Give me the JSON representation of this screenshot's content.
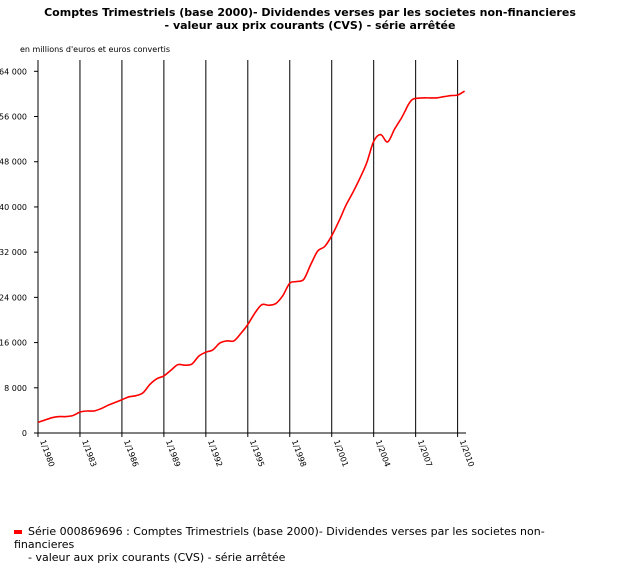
{
  "title_line1": "Comptes Trimestriels (base 2000)- Dividendes verses par les societes non-financieres",
  "title_line2": "- valeur aux prix courants (CVS) - série arrêtée",
  "unit_label": "en millions d'euros et euros convertis",
  "legend": {
    "line1": "Série 000869696 : Comptes Trimestriels (base 2000)- Dividendes verses par les societes non-financieres",
    "line2": "- valeur aux prix courants (CVS) - série arrêtée",
    "color": "#ff0000"
  },
  "chart_data": {
    "type": "line",
    "title": "Comptes Trimestriels (base 2000)- Dividendes verses par les societes non-financieres - valeur aux prix courants (CVS) - série arrêtée",
    "ylabel": "en millions d'euros et euros convertis",
    "xlim": [
      1980,
      2010.6
    ],
    "ylim": [
      0,
      66000
    ],
    "grid": "vertical",
    "x_ticks": [
      {
        "x": 1980,
        "label": "1/1980"
      },
      {
        "x": 1983,
        "label": "1/1983"
      },
      {
        "x": 1986,
        "label": "1/1986"
      },
      {
        "x": 1989,
        "label": "1/1989"
      },
      {
        "x": 1992,
        "label": "1/1992"
      },
      {
        "x": 1995,
        "label": "1/1995"
      },
      {
        "x": 1998,
        "label": "1/1998"
      },
      {
        "x": 2001,
        "label": "1/2001"
      },
      {
        "x": 2004,
        "label": "1/2004"
      },
      {
        "x": 2007,
        "label": "1/2007"
      },
      {
        "x": 2010,
        "label": "1/2010"
      }
    ],
    "y_ticks": [
      {
        "y": 0,
        "label": "0"
      },
      {
        "y": 8000,
        "label": "8 000"
      },
      {
        "y": 16000,
        "label": "16 000"
      },
      {
        "y": 24000,
        "label": "24 000"
      },
      {
        "y": 32000,
        "label": "32 000"
      },
      {
        "y": 40000,
        "label": "40 000"
      },
      {
        "y": 48000,
        "label": "48 000"
      },
      {
        "y": 56000,
        "label": "56 000"
      },
      {
        "y": 64000,
        "label": "64 000"
      }
    ],
    "series": [
      {
        "color": "#ff0000",
        "x": [
          1980.0,
          1980.5,
          1981.0,
          1981.5,
          1982.0,
          1982.5,
          1983.0,
          1983.5,
          1984.0,
          1984.5,
          1985.0,
          1985.5,
          1986.0,
          1986.5,
          1987.0,
          1987.5,
          1988.0,
          1988.5,
          1989.0,
          1989.5,
          1990.0,
          1990.5,
          1991.0,
          1991.5,
          1992.0,
          1992.5,
          1993.0,
          1993.5,
          1994.0,
          1994.5,
          1995.0,
          1995.5,
          1996.0,
          1996.5,
          1997.0,
          1997.5,
          1998.0,
          1998.5,
          1999.0,
          1999.5,
          2000.0,
          2000.5,
          2001.0,
          2001.5,
          2002.0,
          2002.5,
          2003.0,
          2003.5,
          2004.0,
          2004.5,
          2005.0,
          2005.5,
          2006.0,
          2006.25,
          2006.5,
          2006.75,
          2007.0,
          2007.5,
          2008.0,
          2008.5,
          2009.0,
          2009.5,
          2010.0,
          2010.5
        ],
        "y": [
          1900,
          2300,
          2700,
          2900,
          2900,
          3100,
          3700,
          3900,
          3900,
          4300,
          4900,
          5400,
          5900,
          6400,
          6600,
          7100,
          8600,
          9600,
          10100,
          11100,
          12100,
          12000,
          12200,
          13600,
          14300,
          14700,
          15900,
          16300,
          16300,
          17600,
          19200,
          21200,
          22700,
          22600,
          22900,
          24300,
          26500,
          26800,
          27200,
          29800,
          32200,
          33000,
          34900,
          37400,
          40200,
          42500,
          45000,
          47800,
          51600,
          52800,
          51500,
          53800,
          55800,
          57000,
          58200,
          59000,
          59200,
          59300,
          59300,
          59300,
          59500,
          59700,
          59800,
          60500
        ]
      }
    ]
  }
}
